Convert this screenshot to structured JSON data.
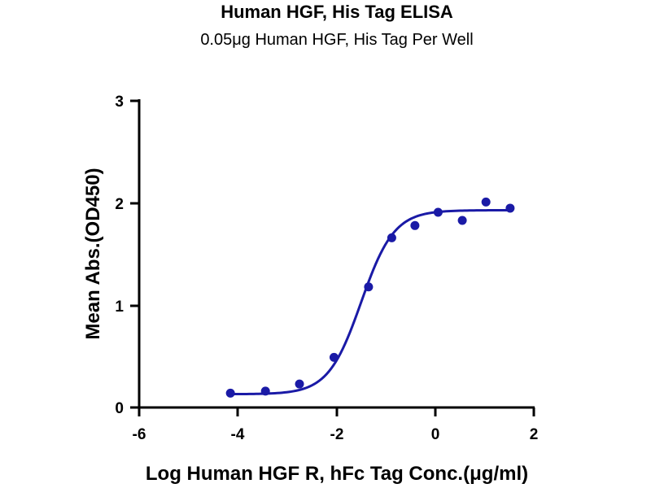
{
  "chart_data": {
    "type": "scatter",
    "title": "Human HGF, His Tag ELISA",
    "subtitle": "0.05μg Human HGF, His Tag Per Well",
    "xlabel": "Log Human HGF R, hFc Tag Conc.(μg/ml)",
    "ylabel": "Mean Abs.(OD450)",
    "xlim": [
      -6,
      2
    ],
    "ylim": [
      0,
      3
    ],
    "xticks": [
      "-6",
      "-4",
      "-2",
      "0",
      "2"
    ],
    "yticks": [
      "0",
      "1",
      "2",
      "3"
    ],
    "color": "#1a1aa6",
    "grid": false,
    "series": [
      {
        "points": [
          {
            "x": -4.15,
            "y": 0.14
          },
          {
            "x": -3.44,
            "y": 0.16
          },
          {
            "x": -2.75,
            "y": 0.23
          },
          {
            "x": -2.05,
            "y": 0.49
          },
          {
            "x": -1.35,
            "y": 1.18
          },
          {
            "x": -0.88,
            "y": 1.66
          },
          {
            "x": -0.41,
            "y": 1.78
          },
          {
            "x": 0.06,
            "y": 1.91
          },
          {
            "x": 0.55,
            "y": 1.83
          },
          {
            "x": 1.03,
            "y": 2.01
          },
          {
            "x": 1.52,
            "y": 1.95
          }
        ]
      }
    ],
    "fit_curve": {
      "model": "4PL",
      "bottom": 0.13,
      "top": 1.93,
      "log_ec50": -1.5,
      "hill_slope": 1.3,
      "x_range": [
        -4.15,
        1.55
      ]
    }
  }
}
